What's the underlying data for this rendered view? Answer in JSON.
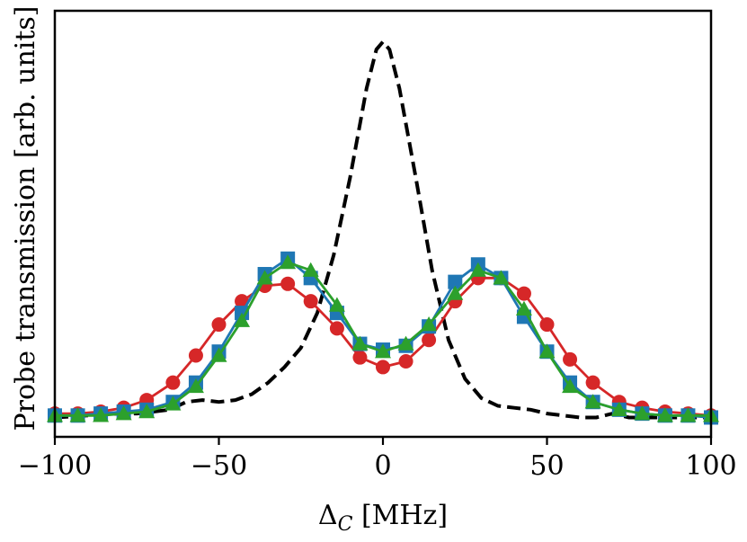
{
  "chart_data": {
    "type": "line",
    "title": "",
    "xlabel": "Δ_C [MHz]",
    "xlabel_main": "Δ",
    "xlabel_sub": "C",
    "xlabel_unit": " [MHz]",
    "ylabel": "Probe transmission [arb. units]",
    "xlim": [
      -100,
      100
    ],
    "ylim": [
      -0.05,
      1.05
    ],
    "xticks": [
      -100,
      -50,
      0,
      50,
      100
    ],
    "xtick_labels": [
      "−100",
      "−50",
      "0",
      "50",
      "100"
    ],
    "grid": false,
    "series": [
      {
        "name": "reference",
        "style": "dashed",
        "marker": "none",
        "color": "#000000",
        "x": [
          -100,
          -90,
          -80,
          -75,
          -70,
          -65,
          -60,
          -55,
          -50,
          -45,
          -40,
          -35,
          -30,
          -25,
          -20,
          -15,
          -10,
          -5,
          -2,
          0,
          2,
          5,
          10,
          15,
          20,
          25,
          30,
          35,
          40,
          45,
          50,
          55,
          60,
          65,
          70,
          75,
          80,
          90,
          100
        ],
        "y": [
          0.0,
          0.005,
          0.01,
          0.01,
          0.015,
          0.02,
          0.04,
          0.045,
          0.04,
          0.045,
          0.06,
          0.09,
          0.13,
          0.18,
          0.27,
          0.42,
          0.62,
          0.85,
          0.95,
          0.97,
          0.95,
          0.85,
          0.62,
          0.38,
          0.2,
          0.1,
          0.05,
          0.03,
          0.025,
          0.02,
          0.01,
          0.005,
          0.0,
          0.0,
          0.01,
          0.0,
          0.0,
          0.0,
          0.0
        ]
      },
      {
        "name": "red circles",
        "style": "solid",
        "marker": "circle",
        "color": "#d62728",
        "x": [
          -100,
          -93,
          -86,
          -79,
          -72,
          -64,
          -57,
          -50,
          -43,
          -36,
          -29,
          -22,
          -14,
          -7,
          0,
          7,
          14,
          22,
          29,
          36,
          43,
          50,
          57,
          64,
          72,
          79,
          86,
          93,
          100
        ],
        "y": [
          0.01,
          0.01,
          0.015,
          0.025,
          0.045,
          0.09,
          0.16,
          0.24,
          0.3,
          0.34,
          0.345,
          0.3,
          0.23,
          0.155,
          0.13,
          0.145,
          0.2,
          0.3,
          0.36,
          0.36,
          0.32,
          0.24,
          0.15,
          0.09,
          0.04,
          0.025,
          0.015,
          0.01,
          0.005
        ]
      },
      {
        "name": "blue squares",
        "style": "solid",
        "marker": "square",
        "color": "#1f77b4",
        "x": [
          -100,
          -93,
          -86,
          -79,
          -72,
          -64,
          -57,
          -50,
          -43,
          -36,
          -29,
          -22,
          -14,
          -7,
          0,
          7,
          14,
          22,
          29,
          36,
          43,
          50,
          57,
          64,
          72,
          79,
          86,
          93,
          100
        ],
        "y": [
          0.005,
          0.005,
          0.01,
          0.015,
          0.02,
          0.04,
          0.09,
          0.17,
          0.27,
          0.37,
          0.41,
          0.36,
          0.27,
          0.19,
          0.175,
          0.185,
          0.235,
          0.35,
          0.395,
          0.36,
          0.26,
          0.17,
          0.09,
          0.04,
          0.02,
          0.01,
          0.005,
          0.005,
          0.0
        ]
      },
      {
        "name": "green triangles",
        "style": "solid",
        "marker": "triangle",
        "color": "#2ca02c",
        "x": [
          -100,
          -93,
          -86,
          -79,
          -72,
          -64,
          -57,
          -50,
          -43,
          -36,
          -29,
          -22,
          -14,
          -7,
          0,
          7,
          14,
          22,
          29,
          36,
          43,
          50,
          57,
          64,
          72,
          79,
          86,
          93,
          100
        ],
        "y": [
          0.005,
          0.005,
          0.005,
          0.01,
          0.015,
          0.035,
          0.08,
          0.16,
          0.25,
          0.36,
          0.4,
          0.38,
          0.29,
          0.19,
          0.17,
          0.19,
          0.24,
          0.32,
          0.38,
          0.36,
          0.28,
          0.17,
          0.08,
          0.04,
          0.02,
          0.01,
          0.005,
          0.005,
          0.005
        ]
      }
    ]
  }
}
